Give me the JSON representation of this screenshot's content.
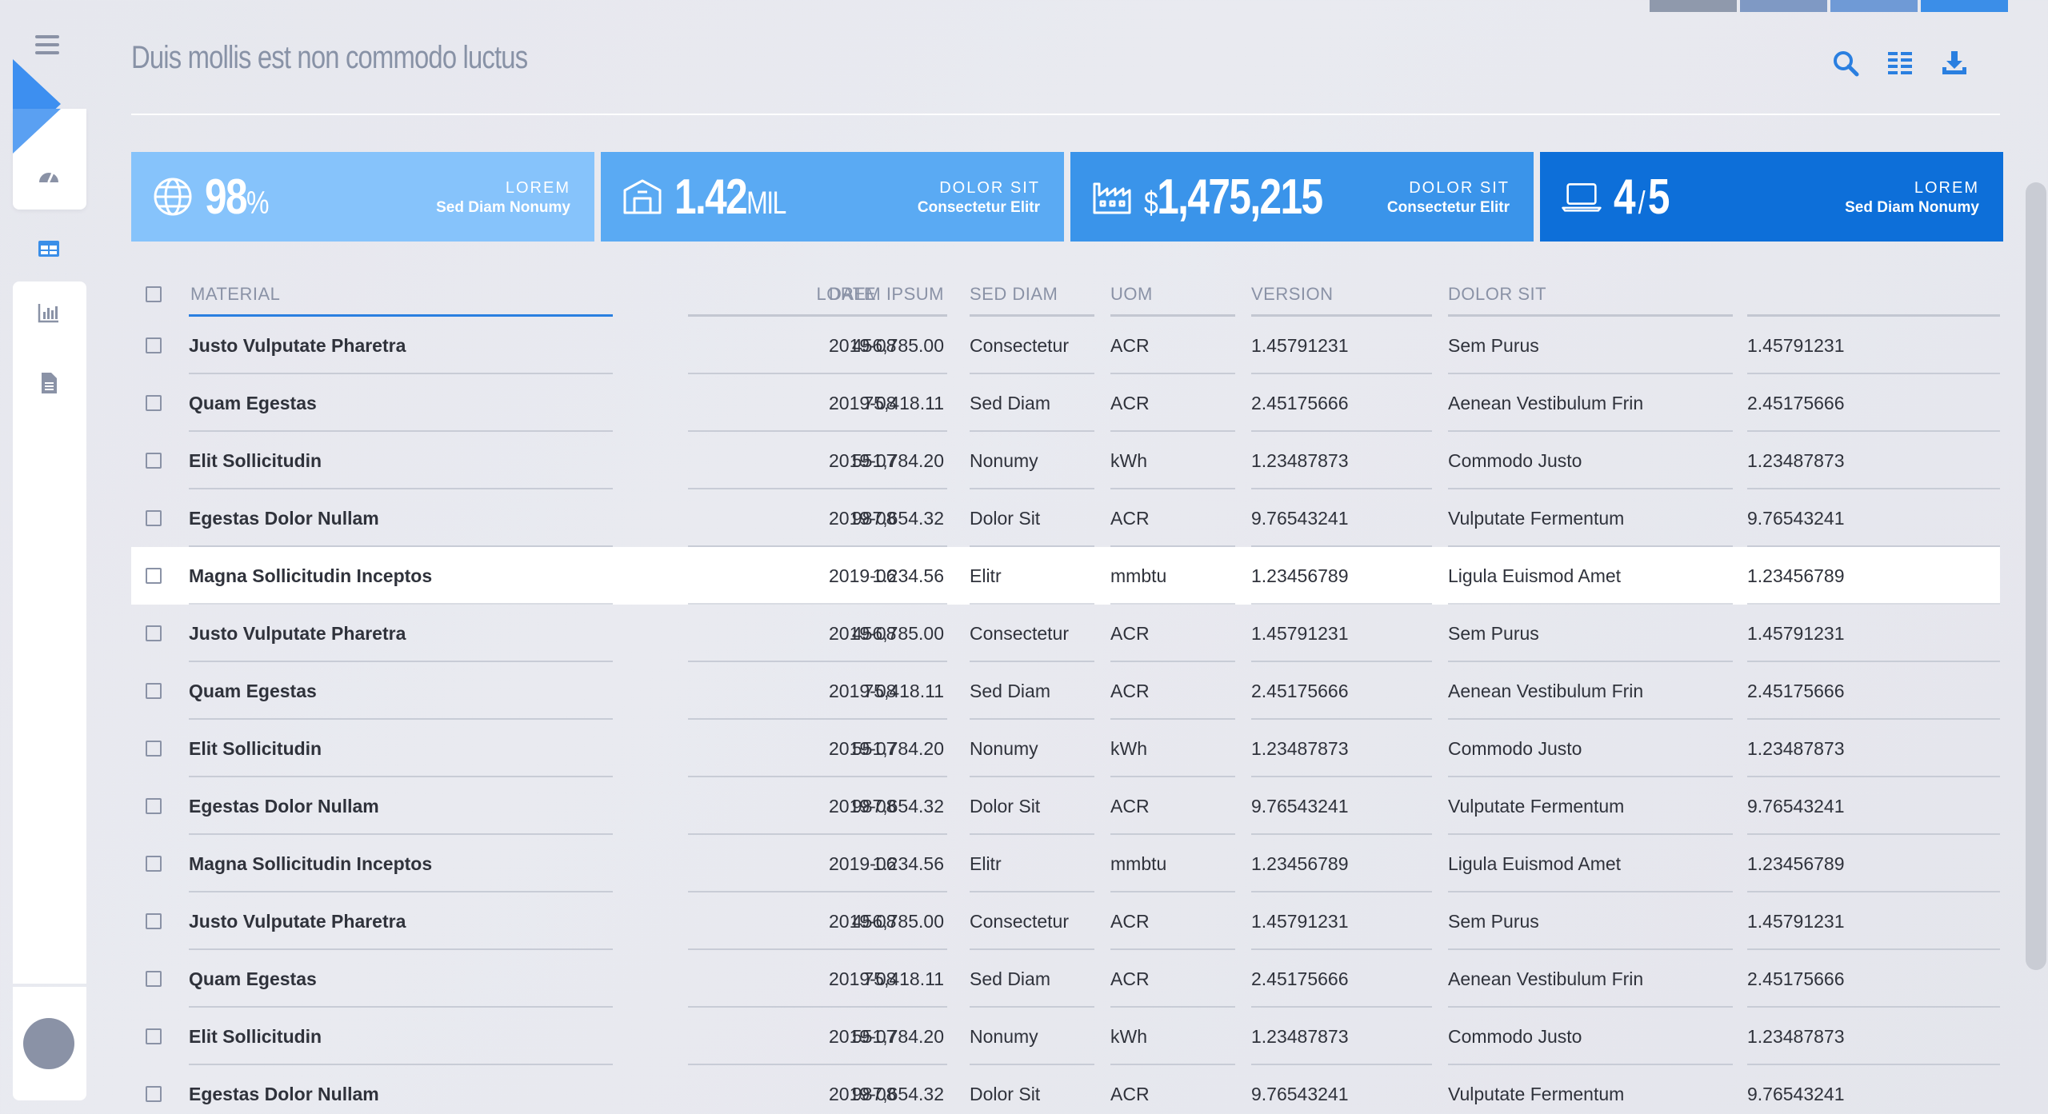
{
  "header": {
    "title": "Duis mollis est non commodo luctus"
  },
  "header_actions": {
    "search_icon": "search-icon",
    "columns_icon": "columns-icon",
    "download_icon": "download-icon"
  },
  "kpis": [
    {
      "icon": "globe-icon",
      "value": "98",
      "prefix": "",
      "unit": "%",
      "title": "LOREM",
      "subtitle": "Sed Diam Nonumy",
      "color": "#86c3fb"
    },
    {
      "icon": "warehouse-icon",
      "value": "1.42",
      "prefix": "",
      "unit": "MIL",
      "title": "DOLOR SIT",
      "subtitle": "Consectetur Elitr",
      "color": "#5aaaf3"
    },
    {
      "icon": "factory-icon",
      "value": "1,475,215",
      "prefix": "$",
      "unit": "",
      "title": "DOLOR SIT",
      "subtitle": "Consectetur Elitr",
      "color": "#3a94ea"
    },
    {
      "icon": "laptop-icon",
      "value": "4",
      "prefix": "",
      "unit": "5",
      "separator": "/",
      "title": "LOREM",
      "subtitle": "Sed Diam Nonumy",
      "color": "#0d6fd9"
    }
  ],
  "table": {
    "columns": [
      "MATERIAL",
      "LOREM IPSUM",
      "DATE",
      "SED DIAM",
      "UOM",
      "VERSION",
      "DOLOR SIT",
      ""
    ],
    "rows": [
      [
        "Justo Vulputate Pharetra",
        "456,785.00",
        "2019-08",
        "Consectetur",
        "ACR",
        "1.45791231",
        "Sem Purus",
        "1.45791231"
      ],
      [
        "Quam Egestas",
        "75,418.11",
        "2019-08",
        "Sed Diam",
        "ACR",
        "2.45175666",
        "Aenean Vestibulum Frin",
        "2.45175666"
      ],
      [
        "Elit Sollicitudin",
        "551,784.20",
        "2019-07",
        "Nonumy",
        "kWh",
        "1.23487873",
        "Commodo Justo",
        "1.23487873"
      ],
      [
        "Egestas Dolor Nullam",
        "987,654.32",
        "2019-08",
        "Dolor Sit",
        "ACR",
        "9.76543241",
        "Vulputate Fermentum",
        "9.76543241"
      ],
      [
        "Magna Sollicitudin Inceptos",
        "1.234.56",
        "2019-06",
        "Elitr",
        "mmbtu",
        "1.23456789",
        "Ligula Euismod Amet",
        "1.23456789"
      ],
      [
        "Justo Vulputate Pharetra",
        "456,785.00",
        "2019-08",
        "Consectetur",
        "ACR",
        "1.45791231",
        "Sem Purus",
        "1.45791231"
      ],
      [
        "Quam Egestas",
        "75,418.11",
        "2019-08",
        "Sed Diam",
        "ACR",
        "2.45175666",
        "Aenean Vestibulum Frin",
        "2.45175666"
      ],
      [
        "Elit Sollicitudin",
        "551,784.20",
        "2019-07",
        "Nonumy",
        "kWh",
        "1.23487873",
        "Commodo Justo",
        "1.23487873"
      ],
      [
        "Egestas Dolor Nullam",
        "987,654.32",
        "2019-08",
        "Dolor Sit",
        "ACR",
        "9.76543241",
        "Vulputate Fermentum",
        "9.76543241"
      ],
      [
        "Magna Sollicitudin Inceptos",
        "1.234.56",
        "2019-06",
        "Elitr",
        "mmbtu",
        "1.23456789",
        "Ligula Euismod Amet",
        "1.23456789"
      ],
      [
        "Justo Vulputate Pharetra",
        "456,785.00",
        "2019-08",
        "Consectetur",
        "ACR",
        "1.45791231",
        "Sem Purus",
        "1.45791231"
      ],
      [
        "Quam Egestas",
        "75,418.11",
        "2019-08",
        "Sed Diam",
        "ACR",
        "2.45175666",
        "Aenean Vestibulum Frin",
        "2.45175666"
      ],
      [
        "Elit Sollicitudin",
        "551,784.20",
        "2019-07",
        "Nonumy",
        "kWh",
        "1.23487873",
        "Commodo Justo",
        "1.23487873"
      ],
      [
        "Egestas Dolor Nullam",
        "987,654.32",
        "2019-08",
        "Dolor Sit",
        "ACR",
        "9.76543241",
        "Vulputate Fermentum",
        "9.76543241"
      ]
    ],
    "highlighted_row": 4,
    "sorted_column": "MATERIAL"
  },
  "sidebar": {
    "menu_icon": "hamburger-menu-icon",
    "items": [
      {
        "icon": "gauge-icon"
      },
      {
        "icon": "table-icon",
        "active": true
      },
      {
        "icon": "bar-chart-icon"
      },
      {
        "icon": "document-icon"
      }
    ],
    "user_icon": "user-avatar"
  },
  "colors": {
    "accent": "#2a7fe0",
    "kpi_1": "#86c3fb",
    "kpi_2": "#5aaaf3",
    "kpi_3": "#3a94ea",
    "kpi_4": "#0d6fd9",
    "muted_text": "#8a92a6"
  }
}
